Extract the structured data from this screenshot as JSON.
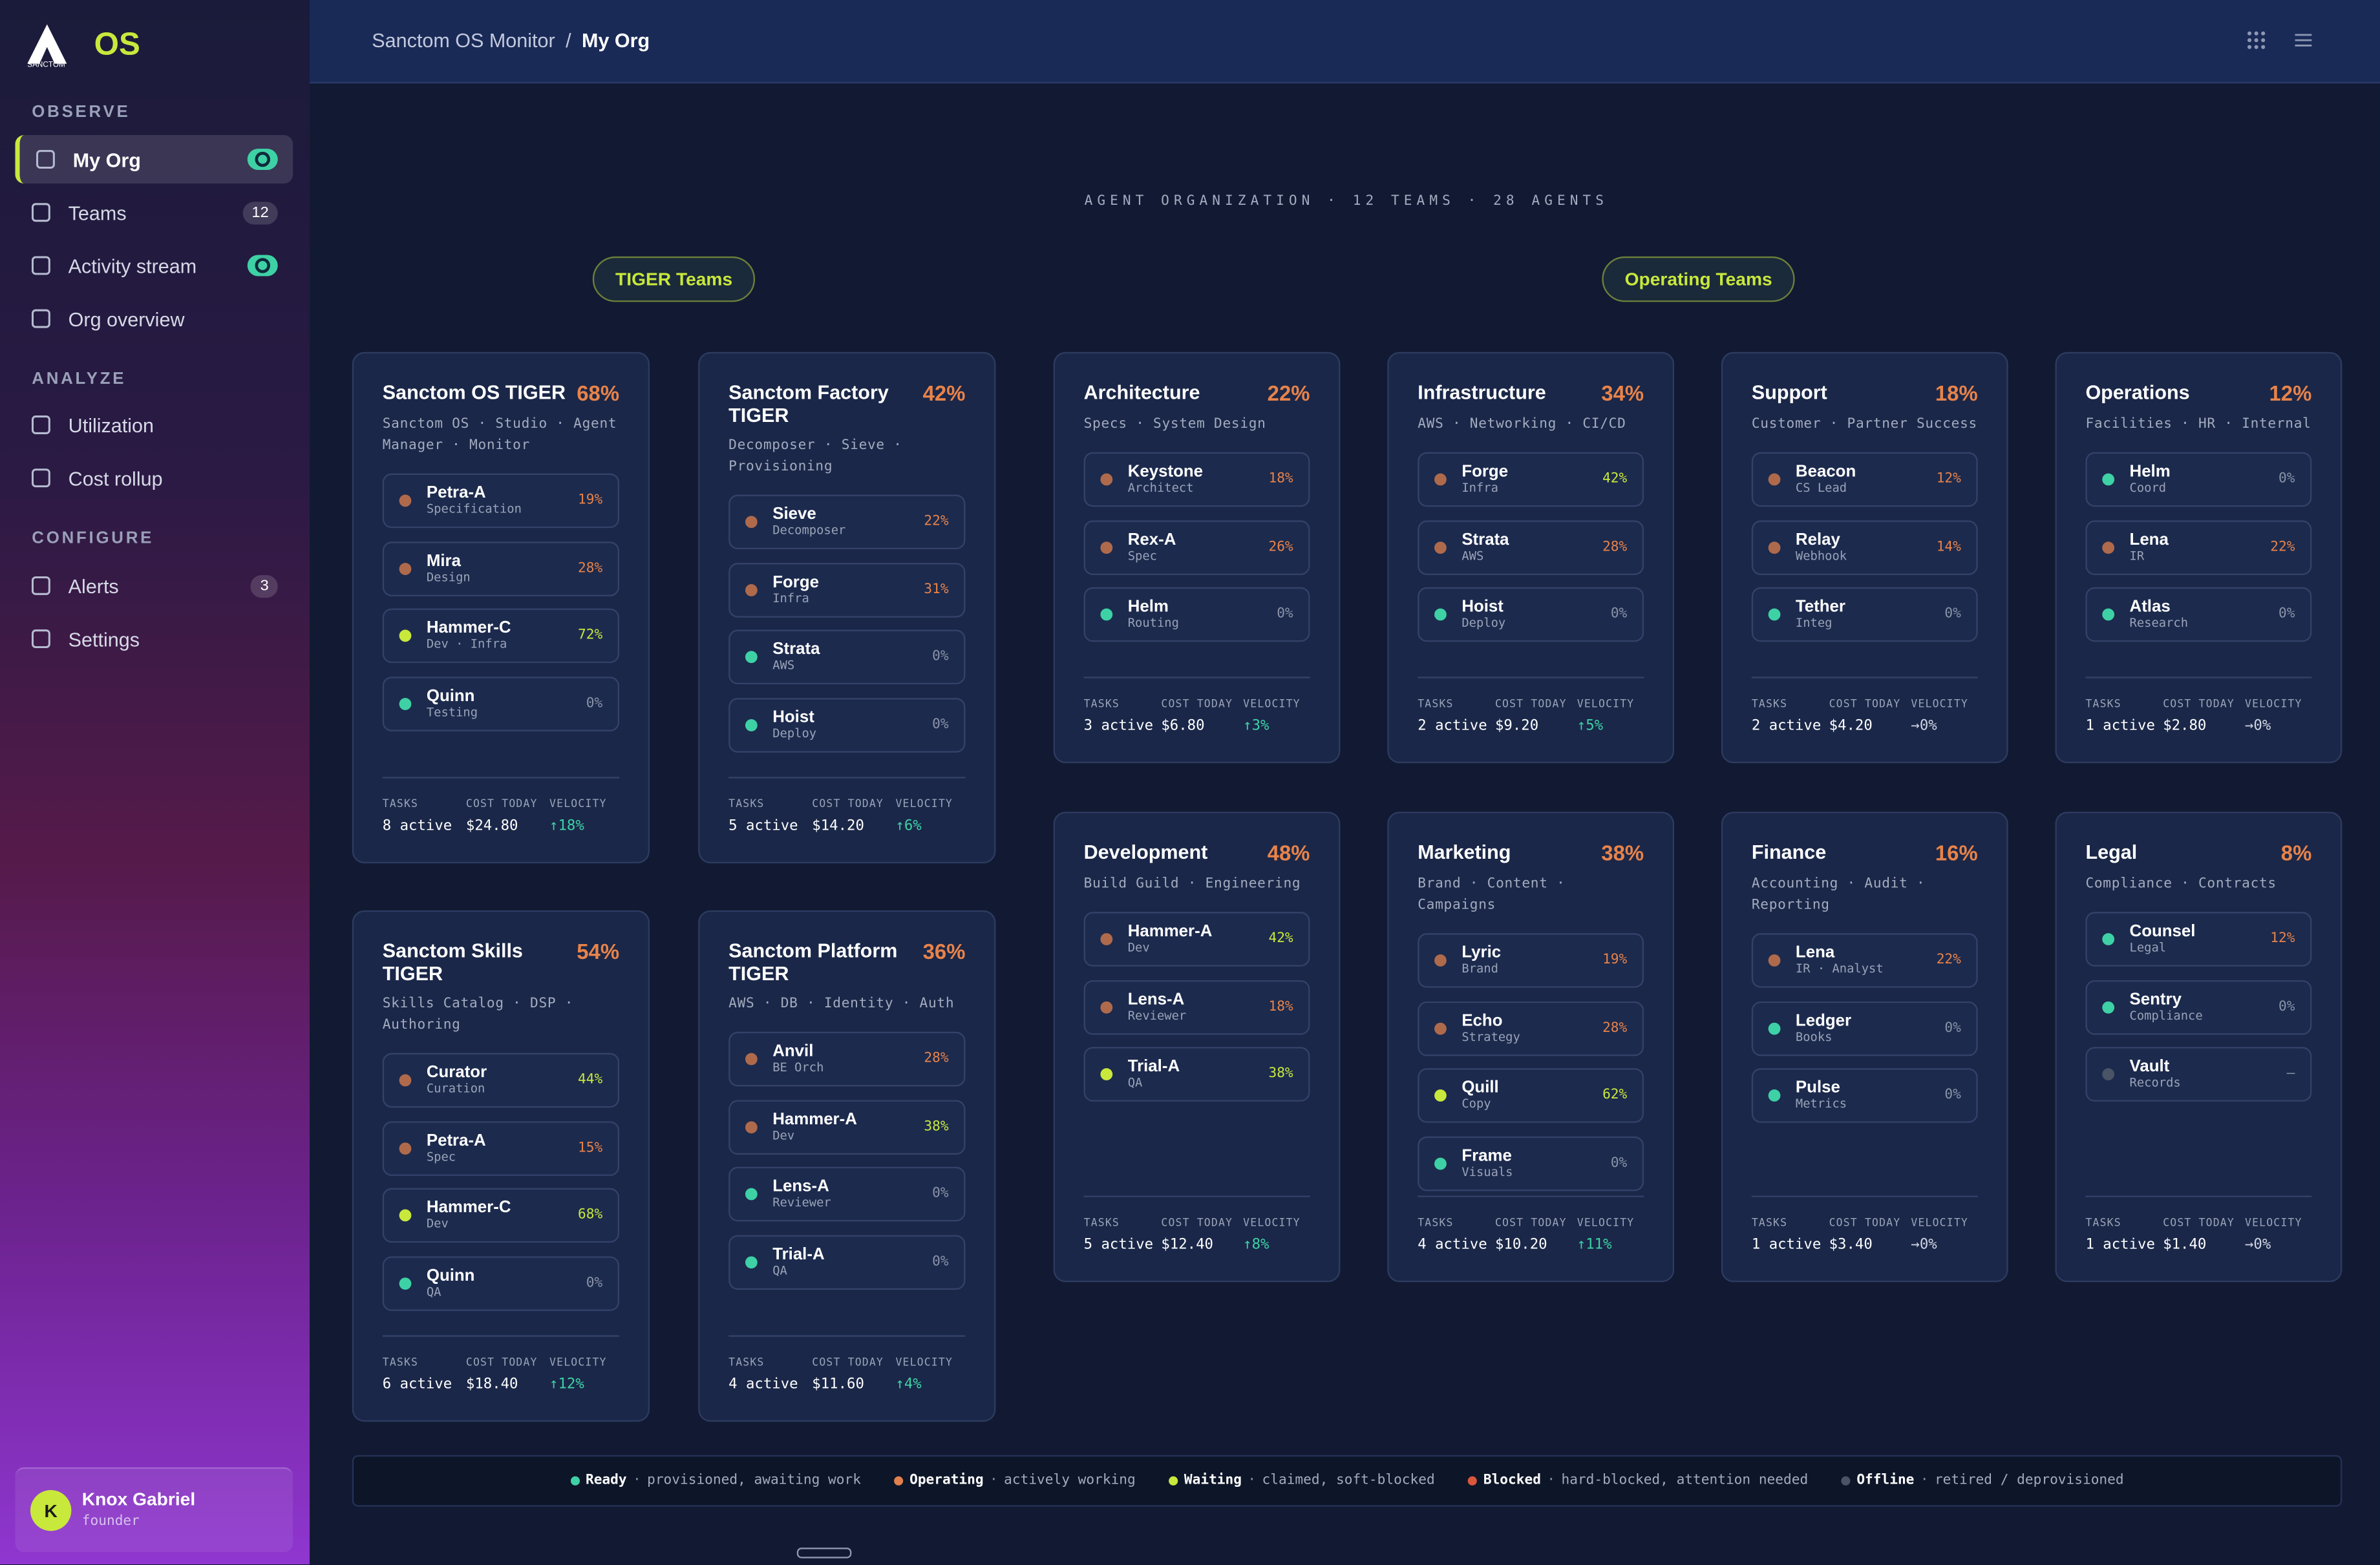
{
  "sidebar": {
    "logo_caption": "SANCTOM",
    "logo_mark": "OS",
    "nav": [
      {
        "section": "OBSERVE",
        "items": [
          {
            "label": "My Org",
            "active": true,
            "toggle": true
          },
          {
            "label": "Teams",
            "badge": "12"
          },
          {
            "label": "Activity stream",
            "toggle": true
          },
          {
            "label": "Org overview"
          }
        ]
      },
      {
        "section": "ANALYZE",
        "items": [
          {
            "label": "Utilization"
          },
          {
            "label": "Cost rollup"
          }
        ]
      },
      {
        "section": "CONFIGURE",
        "items": [
          {
            "label": "Alerts",
            "badge": "3"
          },
          {
            "label": "Settings"
          }
        ]
      }
    ],
    "user": {
      "initial": "K",
      "name": "Knox Gabriel",
      "role": "founder"
    }
  },
  "header": {
    "breadcrumb": [
      "Sanctom OS Monitor",
      "My Org"
    ],
    "separator": "/"
  },
  "org_heading": "AGENT ORGANIZATION · 12 TEAMS · 28 AGENTS",
  "stat_labels": [
    "TASKS",
    "COST TODAY",
    "VELOCITY"
  ],
  "groups": [
    {
      "label": "TIGER Teams",
      "teams": [
        {
          "name": "Sanctom OS TIGER",
          "pct": "68%",
          "desc": "Sanctom OS · Studio · Agent Manager · Monitor",
          "agents": [
            {
              "name": "Petra-A",
              "role": "Specification",
              "pct": "19%",
              "status": "Operating"
            },
            {
              "name": "Mira",
              "role": "Design",
              "pct": "28%",
              "status": "Operating"
            },
            {
              "name": "Hammer-C",
              "role": "Dev · Infra",
              "pct": "72%",
              "status": "Waiting"
            },
            {
              "name": "Quinn",
              "role": "Testing",
              "pct": "0%",
              "status": "Ready"
            }
          ],
          "tasks": "8 active",
          "cost": "$24.80",
          "velocity": "↑18%"
        },
        {
          "name": "Sanctom Factory TIGER",
          "pct": "42%",
          "desc": "Decomposer · Sieve · Provisioning",
          "agents": [
            {
              "name": "Sieve",
              "role": "Decomposer",
              "pct": "22%",
              "status": "Operating"
            },
            {
              "name": "Forge",
              "role": "Infra",
              "pct": "31%",
              "status": "Operating"
            },
            {
              "name": "Strata",
              "role": "AWS",
              "pct": "0%",
              "status": "Ready"
            },
            {
              "name": "Hoist",
              "role": "Deploy",
              "pct": "0%",
              "status": "Ready"
            }
          ],
          "tasks": "5 active",
          "cost": "$14.20",
          "velocity": "↑6%"
        },
        {
          "name": "Sanctom Skills TIGER",
          "pct": "54%",
          "desc": "Skills Catalog · DSP · Authoring",
          "agents": [
            {
              "name": "Curator",
              "role": "Curation",
              "pct": "44%",
              "status": "Operating"
            },
            {
              "name": "Petra-A",
              "role": "Spec",
              "pct": "15%",
              "status": "Operating"
            },
            {
              "name": "Hammer-C",
              "role": "Dev",
              "pct": "68%",
              "status": "Waiting"
            },
            {
              "name": "Quinn",
              "role": "QA",
              "pct": "0%",
              "status": "Ready"
            }
          ],
          "tasks": "6 active",
          "cost": "$18.40",
          "velocity": "↑12%"
        },
        {
          "name": "Sanctom Platform TIGER",
          "pct": "36%",
          "desc": "AWS · DB · Identity · Auth",
          "agents": [
            {
              "name": "Anvil",
              "role": "BE Orch",
              "pct": "28%",
              "status": "Operating"
            },
            {
              "name": "Hammer-A",
              "role": "Dev",
              "pct": "38%",
              "status": "Operating"
            },
            {
              "name": "Lens-A",
              "role": "Reviewer",
              "pct": "0%",
              "status": "Ready"
            },
            {
              "name": "Trial-A",
              "role": "QA",
              "pct": "0%",
              "status": "Ready"
            }
          ],
          "tasks": "4 active",
          "cost": "$11.60",
          "velocity": "↑4%"
        }
      ]
    },
    {
      "label": "Operating Teams",
      "teams": [
        {
          "name": "Architecture",
          "pct": "22%",
          "desc": "Specs · System Design",
          "agents": [
            {
              "name": "Keystone",
              "role": "Architect",
              "pct": "18%",
              "status": "Operating"
            },
            {
              "name": "Rex-A",
              "role": "Spec",
              "pct": "26%",
              "status": "Operating"
            },
            {
              "name": "Helm",
              "role": "Routing",
              "pct": "0%",
              "status": "Ready"
            }
          ],
          "tasks": "3 active",
          "cost": "$6.80",
          "velocity": "↑3%"
        },
        {
          "name": "Infrastructure",
          "pct": "34%",
          "desc": "AWS · Networking · CI/CD",
          "agents": [
            {
              "name": "Forge",
              "role": "Infra",
              "pct": "42%",
              "status": "Operating"
            },
            {
              "name": "Strata",
              "role": "AWS",
              "pct": "28%",
              "status": "Operating"
            },
            {
              "name": "Hoist",
              "role": "Deploy",
              "pct": "0%",
              "status": "Ready"
            }
          ],
          "tasks": "2 active",
          "cost": "$9.20",
          "velocity": "↑5%"
        },
        {
          "name": "Support",
          "pct": "18%",
          "desc": "Customer · Partner Success",
          "agents": [
            {
              "name": "Beacon",
              "role": "CS Lead",
              "pct": "12%",
              "status": "Operating"
            },
            {
              "name": "Relay",
              "role": "Webhook",
              "pct": "14%",
              "status": "Operating"
            },
            {
              "name": "Tether",
              "role": "Integ",
              "pct": "0%",
              "status": "Ready"
            }
          ],
          "tasks": "2 active",
          "cost": "$4.20",
          "velocity": "→0%"
        },
        {
          "name": "Operations",
          "pct": "12%",
          "desc": "Facilities · HR · Internal",
          "agents": [
            {
              "name": "Helm",
              "role": "Coord",
              "pct": "0%",
              "status": "Ready"
            },
            {
              "name": "Lena",
              "role": "IR",
              "pct": "22%",
              "status": "Operating"
            },
            {
              "name": "Atlas",
              "role": "Research",
              "pct": "0%",
              "status": "Ready"
            }
          ],
          "tasks": "1 active",
          "cost": "$2.80",
          "velocity": "→0%"
        },
        {
          "name": "Development",
          "pct": "48%",
          "desc": "Build Guild · Engineering",
          "agents": [
            {
              "name": "Hammer-A",
              "role": "Dev",
              "pct": "42%",
              "status": "Operating"
            },
            {
              "name": "Lens-A",
              "role": "Reviewer",
              "pct": "18%",
              "status": "Operating"
            },
            {
              "name": "Trial-A",
              "role": "QA",
              "pct": "38%",
              "status": "Waiting"
            }
          ],
          "tasks": "5 active",
          "cost": "$12.40",
          "velocity": "↑8%"
        },
        {
          "name": "Marketing",
          "pct": "38%",
          "desc": "Brand · Content · Campaigns",
          "agents": [
            {
              "name": "Lyric",
              "role": "Brand",
              "pct": "19%",
              "status": "Operating"
            },
            {
              "name": "Echo",
              "role": "Strategy",
              "pct": "28%",
              "status": "Operating"
            },
            {
              "name": "Quill",
              "role": "Copy",
              "pct": "62%",
              "status": "Waiting"
            },
            {
              "name": "Frame",
              "role": "Visuals",
              "pct": "0%",
              "status": "Ready"
            }
          ],
          "tasks": "4 active",
          "cost": "$10.20",
          "velocity": "↑11%"
        },
        {
          "name": "Finance",
          "pct": "16%",
          "desc": "Accounting · Audit · Reporting",
          "agents": [
            {
              "name": "Lena",
              "role": "IR · Analyst",
              "pct": "22%",
              "status": "Operating"
            },
            {
              "name": "Ledger",
              "role": "Books",
              "pct": "0%",
              "status": "Ready"
            },
            {
              "name": "Pulse",
              "role": "Metrics",
              "pct": "0%",
              "status": "Ready"
            }
          ],
          "tasks": "1 active",
          "cost": "$3.40",
          "velocity": "→0%"
        },
        {
          "name": "Legal",
          "pct": "8%",
          "desc": "Compliance · Contracts",
          "agents": [
            {
              "name": "Counsel",
              "role": "Legal",
              "pct": "12%",
              "status": "Ready"
            },
            {
              "name": "Sentry",
              "role": "Compliance",
              "pct": "0%",
              "status": "Ready"
            },
            {
              "name": "Vault",
              "role": "Records",
              "pct": "–",
              "status": "Offline"
            }
          ],
          "tasks": "1 active",
          "cost": "$1.40",
          "velocity": "→0%"
        }
      ]
    }
  ],
  "legend": [
    {
      "label": "Ready",
      "text": "provisioned, awaiting work",
      "color": "#3ed1a5"
    },
    {
      "label": "Operating",
      "text": "actively working",
      "color": "#e0804c"
    },
    {
      "label": "Waiting",
      "text": "claimed, soft-blocked",
      "color": "#c8e83c"
    },
    {
      "label": "Blocked",
      "text": "hard-blocked, attention needed",
      "color": "#d9573c"
    },
    {
      "label": "Offline",
      "text": "retired / deprovisioned",
      "color": "#4b5366"
    }
  ]
}
